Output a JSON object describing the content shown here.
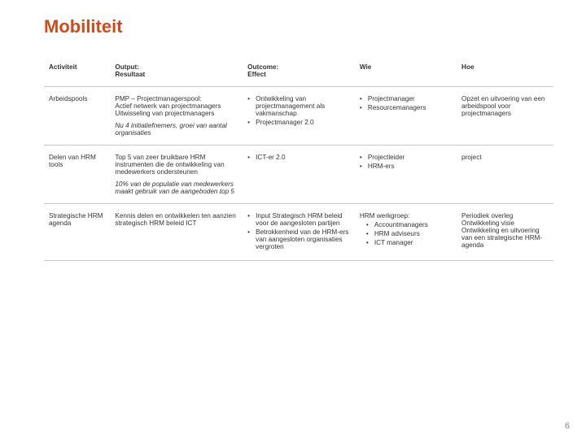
{
  "accent_color": "#d04a1a",
  "title": "Mobiliteit",
  "page_number": "6",
  "columns": {
    "activiteit": "Activiteit",
    "output_line1": "Output:",
    "output_line2": "Resultaat",
    "outcome_line1": "Outcome:",
    "outcome_line2": "Effect",
    "wie": "Wie",
    "hoe": "Hoe"
  },
  "rows": [
    {
      "activiteit": "Arbeidspools",
      "output_main": "PMP – Projectmanagerspool:\nActief netwerk van projectmanagers\nUitwisseling van projectmanagers",
      "output_italic": "Nu 4 initiatiefnemers, groei van aantal organisaties",
      "outcome": [
        "Ontwikkeling van projectmanagement als vakmanschap",
        "Projectmanager 2.0"
      ],
      "wie": [
        "Projectmanager",
        "Resourcemanagers"
      ],
      "hoe": "Opzet en uitvoering van een arbeidspool voor projectmanagers"
    },
    {
      "activiteit": "Delen van HRM tools",
      "output_main": "Top 5 van zeer bruikbare HRM instrumenten die de ontwikkeling van medewerkers ondersteunen",
      "output_italic": "10% van de populatie van medewerkers maakt gebruik van de aangeboden top 5",
      "outcome": [
        "ICT-er 2.0"
      ],
      "wie": [
        "Projectleider",
        "HRM-ers"
      ],
      "hoe": "project"
    },
    {
      "activiteit": "Strategische HRM agenda",
      "output_main": "Kennis delen en ontwikkelen ten aanzien strategisch HRM beleid ICT",
      "output_italic": "",
      "outcome": [
        "Input Strategisch HRM beleid voor de aangesloten partijen",
        "Betrokkenheid van de HRM-ers van aangesloten organisaties vergroten"
      ],
      "wie_group": {
        "head": "HRM werkgroep:",
        "items": [
          "Accountmanagers",
          "HRM adviseurs",
          "ICT manager"
        ]
      },
      "hoe": "Periodiek overleg\nOntwikkeling visie\nOntwikkeling en uitvoering van een strategische HRM-agenda"
    }
  ]
}
